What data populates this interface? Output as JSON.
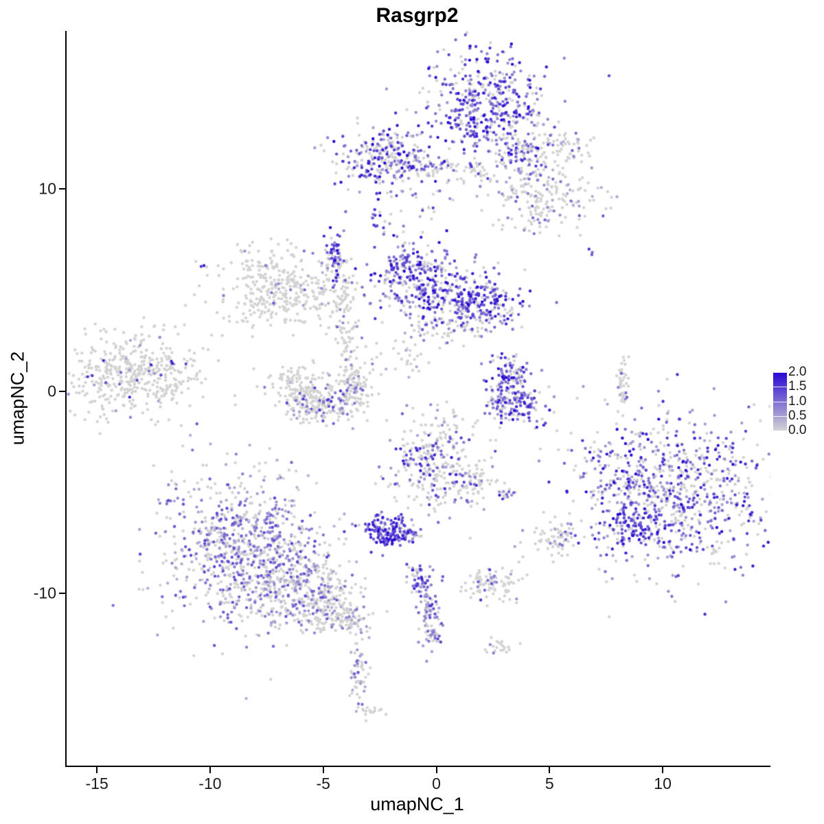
{
  "chart_data": {
    "type": "scatter",
    "title": "Rasgrp2",
    "xlabel": "umapNC_1",
    "ylabel": "umapNC_2",
    "xlim": [
      -16.4,
      14.7
    ],
    "ylim": [
      -18.5,
      17.8
    ],
    "x_ticks": [
      -15,
      -10,
      -5,
      0,
      5,
      10
    ],
    "y_ticks": [
      -10,
      0,
      10
    ],
    "grid": false,
    "legend_position": "right",
    "colorbar": {
      "tick_labels": [
        "2.0",
        "1.5",
        "1.0",
        "0.5",
        "0.0"
      ],
      "min": 0.0,
      "max": 2.0,
      "low_color": "#D3D3D3",
      "high_color": "#2706D3"
    },
    "point_radius": 2.2,
    "seed": 42,
    "clusters": [
      {
        "id": "top-main",
        "cx": 2.0,
        "cy": 14.2,
        "sx": 1.3,
        "sy": 1.3,
        "n": 450,
        "f": 0.75,
        "vmin": 0.6,
        "vmax": 2.0
      },
      {
        "id": "top-main-east",
        "cx": 3.8,
        "cy": 12.0,
        "sx": 0.8,
        "sy": 0.8,
        "n": 120,
        "f": 0.4,
        "vmin": 0.4,
        "vmax": 1.6
      },
      {
        "id": "top-right-gray",
        "cx": 5.8,
        "cy": 12.0,
        "sx": 0.5,
        "sy": 0.5,
        "n": 50,
        "f": 0.2,
        "vmin": 0.3,
        "vmax": 1.2
      },
      {
        "id": "top-arm",
        "cx": 4.7,
        "cy": 9.6,
        "sx": 1.3,
        "sy": 0.9,
        "n": 190,
        "f": 0.25,
        "vmin": 0.3,
        "vmax": 1.2
      },
      {
        "id": "upper-left",
        "cx": -2.3,
        "cy": 11.5,
        "sx": 1.1,
        "sy": 0.7,
        "n": 280,
        "f": 0.55,
        "vmin": 0.5,
        "vmax": 2.0
      },
      {
        "id": "upper-mid-a",
        "cx": -0.2,
        "cy": 11.0,
        "sx": 0.5,
        "sy": 0.3,
        "n": 40,
        "f": 0.5,
        "vmin": 0.4,
        "vmax": 1.8
      },
      {
        "id": "upper-mid-b",
        "cx": 1.7,
        "cy": 10.8,
        "sx": 0.4,
        "sy": 0.3,
        "n": 30,
        "f": 0.35,
        "vmin": 0.4,
        "vmax": 1.5
      },
      {
        "id": "upper-scatter",
        "cx": -0.5,
        "cy": 9.6,
        "sx": 1.2,
        "sy": 0.8,
        "n": 30,
        "f": 0.3,
        "vmin": 0.3,
        "vmax": 1.4
      },
      {
        "id": "tiny-strand",
        "cx": -2.7,
        "cy": 8.6,
        "sx": 0.15,
        "sy": 0.4,
        "n": 14,
        "f": 0.8,
        "vmin": 0.8,
        "vmax": 2.0
      },
      {
        "id": "mid-left-lobe",
        "cx": -0.9,
        "cy": 5.6,
        "sx": 0.9,
        "sy": 0.9,
        "n": 300,
        "f": 0.7,
        "vmin": 0.5,
        "vmax": 2.0
      },
      {
        "id": "mid-right-lobe",
        "cx": 1.7,
        "cy": 4.4,
        "sx": 1.0,
        "sy": 0.7,
        "n": 260,
        "f": 0.75,
        "vmin": 0.5,
        "vmax": 2.0
      },
      {
        "id": "mid-south",
        "cx": 0.2,
        "cy": 3.4,
        "sx": 1.2,
        "sy": 0.5,
        "n": 80,
        "f": 0.45,
        "vmin": 0.3,
        "vmax": 1.5
      },
      {
        "id": "left-gray",
        "cx": -7.0,
        "cy": 5.1,
        "sx": 1.4,
        "sy": 0.9,
        "n": 360,
        "f": 0.06,
        "vmin": 0.3,
        "vmax": 1.2
      },
      {
        "id": "strand-purple",
        "cx": -4.5,
        "cy": 6.8,
        "sx": 0.18,
        "sy": 0.8,
        "n": 55,
        "f": 0.8,
        "vmin": 0.6,
        "vmax": 2.0
      },
      {
        "id": "strand-gray",
        "cx": -4.1,
        "cy": 4.3,
        "sx": 0.3,
        "sy": 1.0,
        "n": 70,
        "f": 0.2,
        "vmin": 0.3,
        "vmax": 1.2
      },
      {
        "id": "strand-tail",
        "cx": -3.9,
        "cy": 2.0,
        "sx": 0.3,
        "sy": 0.8,
        "n": 30,
        "f": 0.2,
        "vmin": 0.3,
        "vmax": 1.0
      },
      {
        "id": "far-left",
        "cx": -13.3,
        "cy": 0.9,
        "sx": 1.5,
        "sy": 1.0,
        "n": 460,
        "f": 0.05,
        "vmin": 0.4,
        "vmax": 1.8
      },
      {
        "id": "crescent-left",
        "cx": -6.2,
        "cy": 0.3,
        "sx": 0.6,
        "sy": 0.5,
        "n": 120,
        "f": 0.1,
        "vmin": 0.3,
        "vmax": 1.2
      },
      {
        "id": "crescent-bottom",
        "cx": -5.0,
        "cy": -0.7,
        "sx": 0.9,
        "sy": 0.4,
        "n": 170,
        "f": 0.28,
        "vmin": 0.4,
        "vmax": 1.6
      },
      {
        "id": "crescent-right",
        "cx": -3.7,
        "cy": 0.2,
        "sx": 0.4,
        "sy": 0.6,
        "n": 100,
        "f": 0.12,
        "vmin": 0.3,
        "vmax": 1.2
      },
      {
        "id": "sparse-center",
        "cx": -1.5,
        "cy": 1.9,
        "sx": 1.3,
        "sy": 0.5,
        "n": 40,
        "f": 0.2,
        "vmin": 0.3,
        "vmax": 1.2
      },
      {
        "id": "mid-right-top",
        "cx": 3.2,
        "cy": 0.9,
        "sx": 0.5,
        "sy": 0.5,
        "n": 90,
        "f": 0.65,
        "vmin": 0.5,
        "vmax": 2.0
      },
      {
        "id": "mid-right-bottom",
        "cx": 3.4,
        "cy": -0.6,
        "sx": 0.7,
        "sy": 0.5,
        "n": 160,
        "f": 0.75,
        "vmin": 0.5,
        "vmax": 2.0
      },
      {
        "id": "thin-right",
        "cx": 8.2,
        "cy": 0.4,
        "sx": 0.15,
        "sy": 0.7,
        "n": 40,
        "f": 0.2,
        "vmin": 0.3,
        "vmax": 1.2
      },
      {
        "id": "right-big",
        "cx": 10.3,
        "cy": -5.0,
        "sx": 2.3,
        "sy": 1.9,
        "n": 850,
        "f": 0.6,
        "vmin": 0.4,
        "vmax": 2.0
      },
      {
        "id": "right-big-dark",
        "cx": 8.7,
        "cy": -6.8,
        "sx": 0.7,
        "sy": 0.5,
        "n": 90,
        "f": 0.9,
        "vmin": 1.0,
        "vmax": 2.0
      },
      {
        "id": "center-bottom",
        "cx": -0.2,
        "cy": -3.6,
        "sx": 1.0,
        "sy": 1.2,
        "n": 280,
        "f": 0.35,
        "vmin": 0.4,
        "vmax": 1.8
      },
      {
        "id": "center-bottom-arm",
        "cx": 1.6,
        "cy": -4.4,
        "sx": 0.5,
        "sy": 0.5,
        "n": 60,
        "f": 0.3,
        "vmin": 0.4,
        "vmax": 1.5
      },
      {
        "id": "sparse-below-center",
        "cx": 0.3,
        "cy": -1.5,
        "sx": 0.6,
        "sy": 0.5,
        "n": 15,
        "f": 0.3,
        "vmin": 0.3,
        "vmax": 1.2
      },
      {
        "id": "tiny-pair",
        "cx": 3.0,
        "cy": -5.1,
        "sx": 0.25,
        "sy": 0.15,
        "n": 15,
        "f": 0.6,
        "vmin": 0.5,
        "vmax": 1.8
      },
      {
        "id": "purple-knot",
        "cx": -2.2,
        "cy": -6.9,
        "sx": 0.55,
        "sy": 0.45,
        "n": 140,
        "f": 0.9,
        "vmin": 0.8,
        "vmax": 2.0
      },
      {
        "id": "knot-east",
        "cx": -1.1,
        "cy": -7.1,
        "sx": 0.3,
        "sy": 0.25,
        "n": 25,
        "f": 0.5,
        "vmin": 0.5,
        "vmax": 1.8
      },
      {
        "id": "bottom-left-main",
        "cx": -8.5,
        "cy": -7.9,
        "sx": 1.8,
        "sy": 1.9,
        "n": 900,
        "f": 0.55,
        "vmin": 0.3,
        "vmax": 1.4
      },
      {
        "id": "bottom-left-east",
        "cx": -5.9,
        "cy": -9.8,
        "sx": 1.1,
        "sy": 0.9,
        "n": 260,
        "f": 0.3,
        "vmin": 0.3,
        "vmax": 1.2
      },
      {
        "id": "bottom-left-tail",
        "cx": -4.6,
        "cy": -10.8,
        "sx": 0.7,
        "sy": 0.6,
        "n": 120,
        "f": 0.15,
        "vmin": 0.3,
        "vmax": 1.0
      },
      {
        "id": "tail-tip",
        "cx": -3.9,
        "cy": -11.3,
        "sx": 0.3,
        "sy": 0.3,
        "n": 40,
        "f": 0.1,
        "vmin": 0.3,
        "vmax": 0.9
      },
      {
        "id": "small-right-of-center",
        "cx": 2.4,
        "cy": -9.5,
        "sx": 0.7,
        "sy": 0.4,
        "n": 90,
        "f": 0.15,
        "vmin": 0.4,
        "vmax": 1.6
      },
      {
        "id": "strand-bottom-top",
        "cx": -0.8,
        "cy": -9.3,
        "sx": 0.3,
        "sy": 0.4,
        "n": 50,
        "f": 0.6,
        "vmin": 0.5,
        "vmax": 1.8
      },
      {
        "id": "strand-bottom-mid",
        "cx": -0.4,
        "cy": -10.9,
        "sx": 0.2,
        "sy": 0.7,
        "n": 60,
        "f": 0.5,
        "vmin": 0.4,
        "vmax": 1.6
      },
      {
        "id": "strand-bottom-end",
        "cx": -0.2,
        "cy": -12.1,
        "sx": 0.25,
        "sy": 0.4,
        "n": 30,
        "f": 0.4,
        "vmin": 0.4,
        "vmax": 1.4
      },
      {
        "id": "gray-mid-right",
        "cx": 5.2,
        "cy": -7.4,
        "sx": 0.5,
        "sy": 0.4,
        "n": 60,
        "f": 0.08,
        "vmin": 0.3,
        "vmax": 1.0
      },
      {
        "id": "bottom-strand",
        "cx": -3.5,
        "cy": -14.0,
        "sx": 0.2,
        "sy": 0.9,
        "n": 60,
        "f": 0.25,
        "vmin": 0.3,
        "vmax": 1.2
      },
      {
        "id": "bottom-tiny",
        "cx": -3.0,
        "cy": -15.8,
        "sx": 0.3,
        "sy": 0.2,
        "n": 14,
        "f": 0.1,
        "vmin": 0.3,
        "vmax": 0.8
      },
      {
        "id": "tiny-bottom-right",
        "cx": 2.9,
        "cy": -12.6,
        "sx": 0.4,
        "sy": 0.25,
        "n": 20,
        "f": 0.1,
        "vmin": 0.3,
        "vmax": 0.9
      },
      {
        "id": "dot-upper-right",
        "cx": 6.8,
        "cy": 6.9,
        "sx": 0.1,
        "sy": 0.1,
        "n": 3,
        "f": 0.7,
        "vmin": 0.8,
        "vmax": 1.6
      },
      {
        "id": "dot-upper-left",
        "cx": -10.4,
        "cy": 6.2,
        "sx": 0.08,
        "sy": 0.08,
        "n": 2,
        "f": 1.0,
        "vmin": 1.2,
        "vmax": 2.0
      }
    ]
  }
}
